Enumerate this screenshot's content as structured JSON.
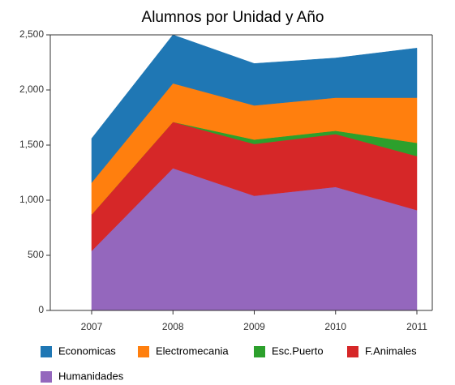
{
  "chart_data": {
    "type": "stacked-area",
    "title": "Alumnos por Unidad y Año",
    "categories": [
      "2007",
      "2008",
      "2009",
      "2010",
      "2011"
    ],
    "series": [
      {
        "name": "Economicas",
        "color": "#1f77b4",
        "values": [
          400,
          440,
          380,
          360,
          450
        ]
      },
      {
        "name": "Electromecania",
        "color": "#ff7f0e",
        "values": [
          290,
          350,
          310,
          300,
          410
        ]
      },
      {
        "name": "Esc.Puerto",
        "color": "#2ca02c",
        "values": [
          0,
          0,
          40,
          30,
          120
        ]
      },
      {
        "name": "F.Animales",
        "color": "#d62728",
        "values": [
          330,
          420,
          470,
          480,
          490
        ]
      },
      {
        "name": "Humanidades",
        "color": "#9467bd",
        "values": [
          540,
          1290,
          1040,
          1120,
          910
        ]
      }
    ],
    "ylim": [
      0,
      2500
    ],
    "yticks": [
      0,
      500,
      {
        "value": 1000,
        "label": "1,000"
      },
      {
        "value": 1500,
        "label": "1,500"
      },
      {
        "value": 2000,
        "label": "2,000"
      },
      {
        "value": 2500,
        "label": "2,500"
      }
    ],
    "legend": "bottom"
  }
}
